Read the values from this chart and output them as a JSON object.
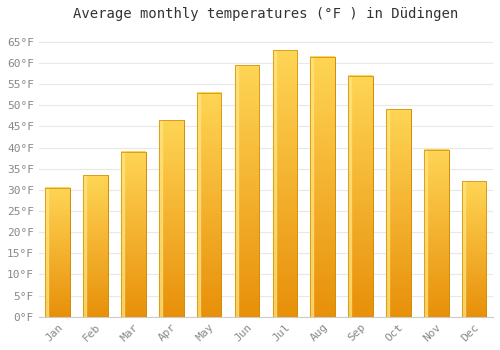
{
  "title": "Average monthly temperatures (°F ) in Düdingen",
  "months": [
    "Jan",
    "Feb",
    "Mar",
    "Apr",
    "May",
    "Jun",
    "Jul",
    "Aug",
    "Sep",
    "Oct",
    "Nov",
    "Dec"
  ],
  "values": [
    30.5,
    33.5,
    39.0,
    46.5,
    53.0,
    59.5,
    63.0,
    61.5,
    57.0,
    49.0,
    39.5,
    32.0
  ],
  "bar_color_main": "#FFA500",
  "bar_color_light": "#FFD040",
  "bar_edge_color": "#CC8800",
  "ylim": [
    0,
    68
  ],
  "yticks": [
    0,
    5,
    10,
    15,
    20,
    25,
    30,
    35,
    40,
    45,
    50,
    55,
    60,
    65
  ],
  "ytick_labels": [
    "0°F",
    "5°F",
    "10°F",
    "15°F",
    "20°F",
    "25°F",
    "30°F",
    "35°F",
    "40°F",
    "45°F",
    "50°F",
    "55°F",
    "60°F",
    "65°F"
  ],
  "bg_color": "#ffffff",
  "grid_color": "#e8e8e8",
  "title_fontsize": 10,
  "tick_fontsize": 8,
  "tick_color": "#888888",
  "bar_width": 0.65
}
